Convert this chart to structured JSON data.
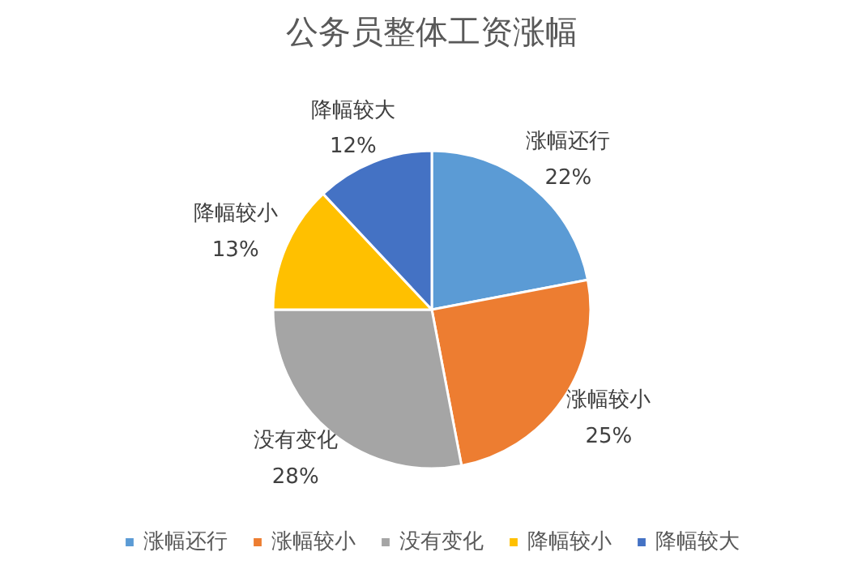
{
  "chart_data": {
    "type": "pie",
    "title": "公务员整体工资涨幅",
    "categories": [
      "涨幅还行",
      "涨幅较小",
      "没有变化",
      "降幅较小",
      "降幅较大"
    ],
    "values": [
      22,
      25,
      28,
      13,
      12
    ],
    "colors": [
      "#5b9bd5",
      "#ed7d31",
      "#a5a5a5",
      "#ffc000",
      "#4472c4"
    ],
    "value_labels": [
      "22%",
      "25%",
      "28%",
      "13%",
      "12%"
    ],
    "legend": "bottom"
  }
}
